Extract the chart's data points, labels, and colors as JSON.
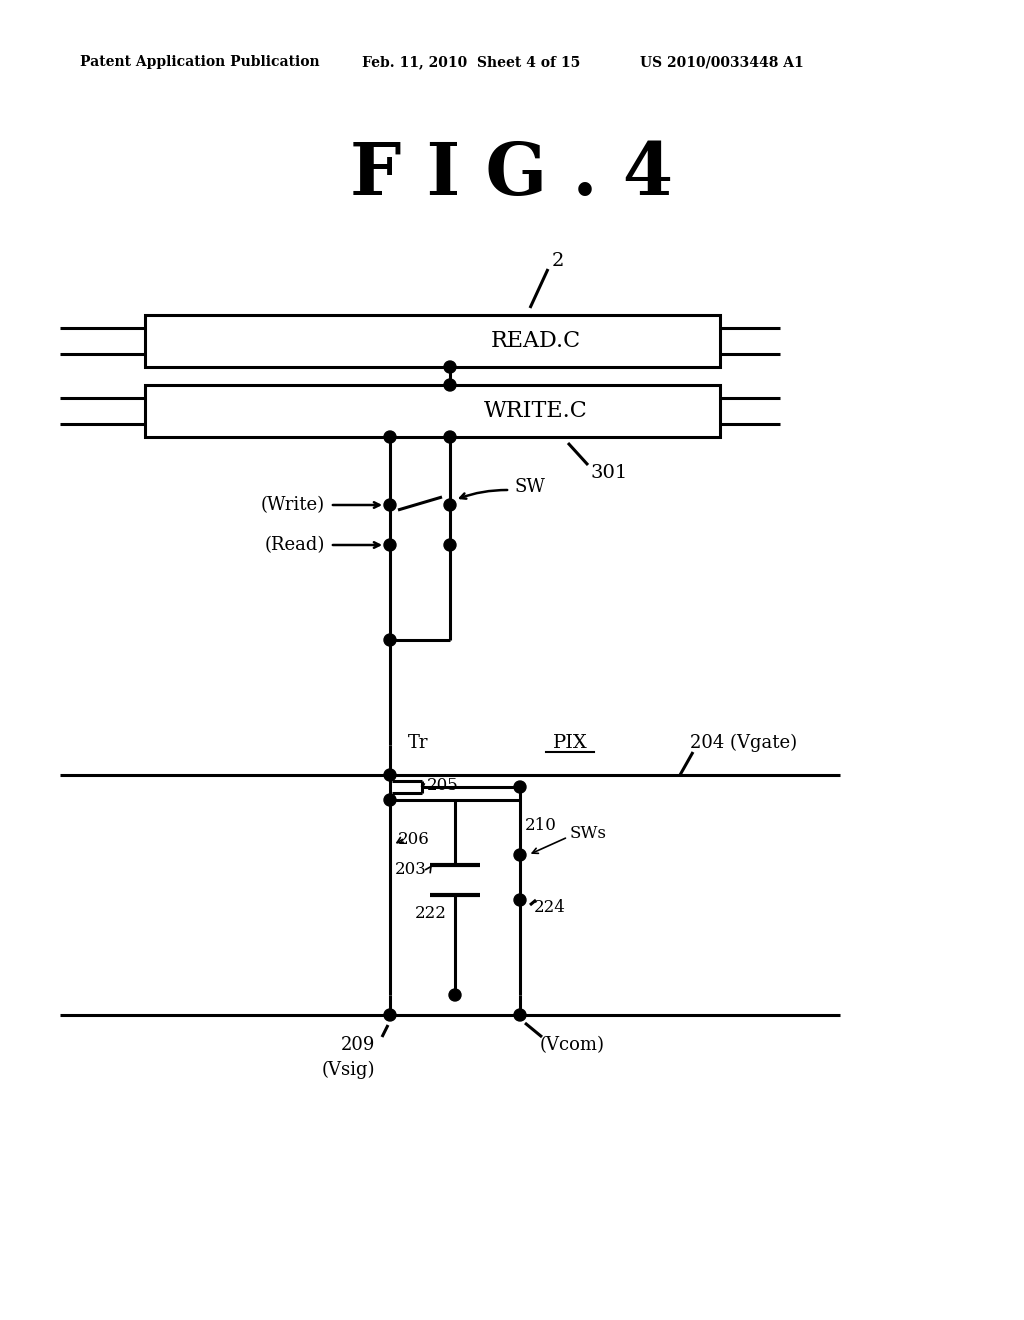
{
  "bg_color": "#ffffff",
  "header_left": "Patent Application Publication",
  "header_mid": "Feb. 11, 2010  Sheet 4 of 15",
  "header_right": "US 2010/0033448 A1",
  "title": "F I G . 4",
  "label_2": "2",
  "label_301": "301",
  "label_204": "204 (Vgate)",
  "label_READ": "READ.C",
  "label_WRITE": "WRITE.C",
  "label_SW": "SW",
  "label_Write": "(Write)",
  "label_Read": "(Read)",
  "label_Tr": "Tr",
  "label_PIX": "PIX",
  "label_205": "205",
  "label_206": "206",
  "label_203": "203",
  "label_210": "210",
  "label_SWs": "SWs",
  "label_224": "224",
  "label_222": "222",
  "label_209": "209",
  "label_Vsig": "(Vsig)",
  "label_Vcom": "(Vcom)"
}
